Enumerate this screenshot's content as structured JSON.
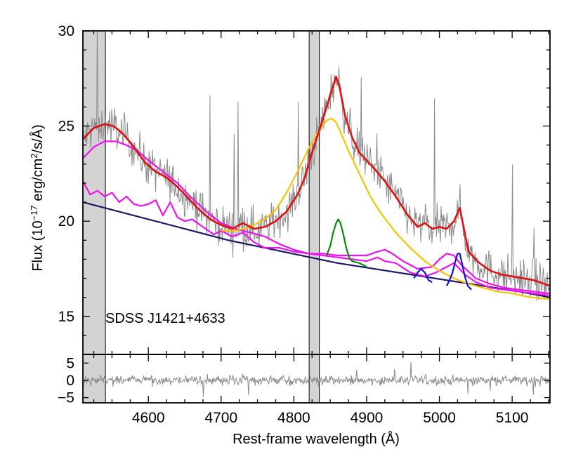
{
  "chart_data": {
    "type": "line",
    "object_label": "SDSS J1421+4633",
    "xlabel": "Rest-frame wavelength (Å)",
    "ylabel_prefix": "Flux (10",
    "ylabel_exp1": "−17",
    "ylabel_mid": " erg/cm",
    "ylabel_exp2": "2",
    "ylabel_suffix": "/s/Å)",
    "xlim": [
      4510,
      5152
    ],
    "ylim_main": [
      13.0,
      30.0
    ],
    "ylim_residual": [
      -6.5,
      7.5
    ],
    "x_ticks": [
      {
        "value": 4600,
        "label": "4600"
      },
      {
        "value": 4700,
        "label": "4700"
      },
      {
        "value": 4800,
        "label": "4800"
      },
      {
        "value": 4900,
        "label": "4900"
      },
      {
        "value": 5000,
        "label": "5000"
      },
      {
        "value": 5100,
        "label": "5100"
      }
    ],
    "y_ticks_main": [
      {
        "value": 15,
        "label": "15"
      },
      {
        "value": 20,
        "label": "20"
      },
      {
        "value": 25,
        "label": "25"
      },
      {
        "value": 30,
        "label": "30"
      }
    ],
    "y_ticks_residual": [
      {
        "value": 5,
        "label": "5"
      },
      {
        "value": 0,
        "label": "0"
      },
      {
        "value": -5,
        "label": "−5"
      }
    ],
    "masked_regions": [
      [
        4510,
        4541
      ],
      [
        4821,
        4835
      ]
    ],
    "colors": {
      "observed": "#8a8a8a",
      "total_model": "#dd1111",
      "broad_hbeta": "#f5c400",
      "narrow_hbeta": "#0a8a0a",
      "oiii": "#1111dd",
      "feii": "#ee11ee",
      "continuum": "#1a1a66",
      "mask": "#d3d3d3",
      "residual": "#8a8a8a"
    },
    "series": [
      {
        "name": "total_model",
        "x": [
          4510,
          4525,
          4540,
          4552,
          4565,
          4580,
          4595,
          4610,
          4625,
          4640,
          4655,
          4670,
          4685,
          4700,
          4715,
          4730,
          4745,
          4760,
          4775,
          4790,
          4805,
          4815,
          4825,
          4835,
          4845,
          4852,
          4858,
          4863,
          4870,
          4880,
          4890,
          4900,
          4912,
          4925,
          4940,
          4955,
          4970,
          4980,
          4990,
          5000,
          5010,
          5020,
          5028,
          5040,
          5055,
          5070,
          5085,
          5100,
          5115,
          5130,
          5152
        ],
        "y": [
          24.3,
          24.9,
          25.1,
          25.0,
          24.6,
          23.9,
          23.1,
          22.6,
          22.3,
          21.8,
          21.2,
          20.6,
          20.1,
          19.8,
          19.6,
          19.9,
          19.6,
          19.7,
          20.0,
          20.5,
          21.4,
          22.3,
          23.6,
          24.8,
          26.0,
          26.9,
          27.6,
          27.0,
          25.6,
          24.4,
          23.6,
          23.2,
          22.7,
          22.1,
          21.3,
          20.4,
          19.7,
          19.9,
          19.6,
          19.7,
          19.6,
          20.0,
          20.7,
          18.4,
          17.8,
          17.4,
          17.2,
          17.1,
          17.0,
          16.9,
          16.6
        ]
      },
      {
        "name": "broad_hbeta",
        "x": [
          4700,
          4720,
          4740,
          4760,
          4775,
          4790,
          4805,
          4820,
          4835,
          4845,
          4852,
          4858,
          4865,
          4875,
          4890,
          4905,
          4920,
          4940,
          4960,
          4980,
          5000,
          5020,
          5040,
          5060,
          5080,
          5100,
          5125,
          5152
        ],
        "y": [
          19.5,
          19.5,
          19.7,
          20.1,
          20.6,
          21.5,
          22.6,
          23.8,
          24.8,
          25.3,
          25.4,
          25.2,
          24.6,
          23.7,
          22.5,
          21.3,
          20.4,
          19.4,
          18.6,
          17.9,
          17.4,
          17.0,
          16.7,
          16.5,
          16.3,
          16.2,
          16.0,
          15.9
        ]
      },
      {
        "name": "narrow_hbeta",
        "x": [
          4845,
          4850,
          4854,
          4858,
          4861,
          4864,
          4868,
          4872,
          4876,
          4880,
          4890,
          4900
        ],
        "y": [
          18.2,
          18.7,
          19.4,
          19.9,
          20.1,
          19.9,
          19.3,
          18.6,
          18.1,
          17.9,
          17.8,
          17.6
        ]
      },
      {
        "name": "oiii_4959",
        "x": [
          4965,
          4970,
          4975,
          4980,
          4985,
          4990
        ],
        "y": [
          17.0,
          17.3,
          17.5,
          17.3,
          16.9,
          16.8
        ]
      },
      {
        "name": "oiii_5007",
        "x": [
          5010,
          5014,
          5018,
          5022,
          5025,
          5028,
          5031,
          5035,
          5039,
          5044
        ],
        "y": [
          16.6,
          16.9,
          17.3,
          17.9,
          18.3,
          18.3,
          17.8,
          17.1,
          16.6,
          16.4
        ]
      },
      {
        "name": "feii_upper",
        "x": [
          4510,
          4525,
          4540,
          4555,
          4570,
          4585,
          4600,
          4620,
          4640,
          4660,
          4680,
          4700,
          4720,
          4740,
          4760,
          4780,
          4800,
          4820,
          4840,
          4860,
          4880,
          4900,
          4915,
          4925,
          4935,
          4950,
          4970,
          4990,
          5000,
          5010,
          5020,
          5030,
          5050,
          5070,
          5090,
          5110,
          5130,
          5152
        ],
        "y": [
          23.3,
          23.9,
          24.2,
          24.2,
          24.0,
          23.7,
          23.2,
          22.6,
          22.0,
          21.2,
          20.5,
          19.9,
          19.6,
          19.4,
          19.2,
          18.8,
          18.5,
          18.3,
          18.3,
          18.2,
          18.2,
          18.2,
          18.4,
          18.5,
          18.3,
          17.9,
          17.5,
          17.6,
          18.0,
          18.3,
          18.2,
          17.7,
          17.0,
          16.7,
          16.5,
          16.4,
          16.3,
          16.2
        ]
      },
      {
        "name": "feii_lower",
        "x": [
          4510,
          4520,
          4530,
          4540,
          4550,
          4560,
          4570,
          4580,
          4590,
          4600,
          4610,
          4620,
          4630,
          4640,
          4650,
          4660,
          4675,
          4690,
          4700,
          4715,
          4730,
          4745,
          4760,
          4780,
          4800,
          4820,
          4840,
          4860,
          4880,
          4900,
          4915,
          4925,
          4940,
          4960,
          4980,
          4995,
          5010,
          5020,
          5035,
          5050,
          5070,
          5090,
          5110,
          5130,
          5152
        ],
        "y": [
          22.1,
          21.4,
          21.6,
          21.3,
          21.5,
          21.0,
          21.3,
          20.9,
          20.8,
          20.9,
          21.1,
          20.3,
          21.0,
          20.2,
          20.0,
          20.1,
          19.7,
          19.3,
          19.5,
          19.2,
          19.4,
          18.9,
          18.6,
          18.6,
          18.4,
          18.3,
          18.2,
          18.1,
          18.0,
          17.9,
          18.1,
          17.9,
          17.8,
          17.3,
          17.1,
          17.3,
          17.6,
          17.8,
          17.2,
          16.8,
          16.5,
          16.4,
          16.3,
          16.2,
          16.1
        ]
      },
      {
        "name": "continuum",
        "x": [
          4510,
          4560,
          4610,
          4660,
          4710,
          4760,
          4810,
          4860,
          4910,
          4960,
          5010,
          5060,
          5110,
          5152
        ],
        "y": [
          21.0,
          20.5,
          20.0,
          19.5,
          19.0,
          18.6,
          18.2,
          17.8,
          17.5,
          17.2,
          16.9,
          16.6,
          16.3,
          16.0
        ]
      }
    ]
  }
}
